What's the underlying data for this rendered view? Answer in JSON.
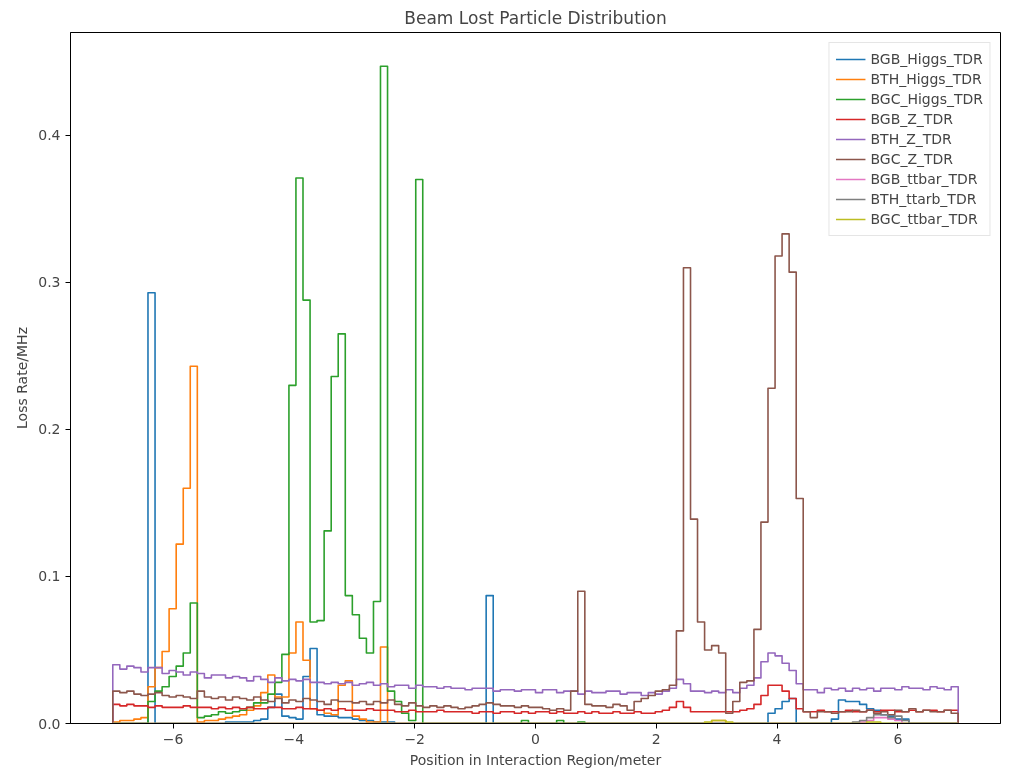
{
  "chart_data": {
    "type": "histogram",
    "title": "Beam Lost Particle Distribution",
    "xlabel": "Position in Interaction Region/meter",
    "ylabel": "Loss Rate/MHz",
    "bins": [
      -7,
      -6.883,
      -6.767,
      -6.65,
      -6.533,
      -6.417,
      -6.3,
      -6.183,
      -6.067,
      -5.95,
      -5.833,
      -5.717,
      -5.6,
      -5.483,
      -5.367,
      -5.25,
      -5.133,
      -5.017,
      -4.9,
      -4.783,
      -4.667,
      -4.55,
      -4.433,
      -4.317,
      -4.2,
      -4.083,
      -3.967,
      -3.85,
      -3.733,
      -3.617,
      -3.5,
      -3.383,
      -3.267,
      -3.15,
      -3.033,
      -2.917,
      -2.8,
      -2.683,
      -2.567,
      -2.45,
      -2.333,
      -2.217,
      -2.1,
      -1.983,
      -1.867,
      -1.75,
      -1.633,
      -1.517,
      -1.4,
      -1.283,
      -1.167,
      -1.05,
      -0.933,
      -0.817,
      -0.7,
      -0.583,
      -0.467,
      -0.35,
      -0.233,
      -0.117,
      0,
      0.117,
      0.233,
      0.35,
      0.467,
      0.583,
      0.7,
      0.817,
      0.933,
      1.05,
      1.167,
      1.283,
      1.4,
      1.517,
      1.633,
      1.75,
      1.867,
      1.983,
      2.1,
      2.217,
      2.333,
      2.45,
      2.567,
      2.683,
      2.8,
      2.917,
      3.033,
      3.15,
      3.267,
      3.383,
      3.5,
      3.617,
      3.733,
      3.85,
      3.967,
      4.083,
      4.2,
      4.317,
      4.433,
      4.55,
      4.667,
      4.783,
      4.9,
      5.017,
      5.133,
      5.25,
      5.367,
      5.483,
      5.6,
      5.717,
      5.833,
      5.95,
      6.067,
      6.183,
      6.3,
      6.417,
      6.533,
      6.65,
      6.767,
      6.883,
      7
    ],
    "series": [
      {
        "name": "BGB_Higgs_TDR",
        "color": "#1f77b4",
        "values": [
          0,
          0,
          0,
          0,
          0,
          0.293,
          0,
          0,
          0,
          0,
          0,
          0,
          0,
          0,
          0,
          0,
          0.001,
          0.001,
          0.001,
          0.001,
          0.002,
          0.003,
          0.011,
          0.02,
          0.005,
          0.004,
          0.003,
          0.032,
          0.051,
          0.006,
          0.005,
          0.005,
          0.004,
          0.004,
          0.003,
          0.002,
          0.002,
          0.001,
          0.001,
          0.001,
          0,
          0,
          0,
          0,
          0,
          0,
          0,
          0,
          0,
          0,
          0,
          0,
          0,
          0.087,
          0,
          0,
          0,
          0,
          0,
          0,
          0,
          0,
          0,
          0,
          0,
          0,
          0,
          0,
          0,
          0,
          0,
          0,
          0,
          0,
          0,
          0,
          0,
          0,
          0,
          0,
          0,
          0,
          0,
          0,
          0,
          0,
          0,
          0,
          0,
          0,
          0,
          0,
          0,
          0.007,
          0.01,
          0.015,
          0.017,
          0,
          0,
          0,
          0,
          0,
          0.003,
          0.016,
          0.015,
          0.015,
          0.013,
          0.01,
          0.009,
          0.006,
          0.005,
          0.003,
          0.003,
          0,
          0,
          0,
          0,
          0,
          0,
          0
        ]
      },
      {
        "name": "BTH_Higgs_TDR",
        "color": "#ff7f0e",
        "values": [
          0.001,
          0.002,
          0.002,
          0.003,
          0.004,
          0.025,
          0.038,
          0.049,
          0.078,
          0.122,
          0.16,
          0.243,
          0.001,
          0.002,
          0.002,
          0.003,
          0.004,
          0.005,
          0.006,
          0.009,
          0.012,
          0.021,
          0.033,
          0.018,
          0.018,
          0.048,
          0.069,
          0.043,
          0.01,
          0.009,
          0.007,
          0.006,
          0.026,
          0.029,
          0.005,
          0.003,
          0.001,
          0.001,
          0.052,
          0,
          0,
          0,
          0,
          0,
          0,
          0,
          0,
          0,
          0,
          0,
          0,
          0,
          0,
          0,
          0,
          0,
          0,
          0,
          0,
          0,
          0,
          0,
          0,
          0,
          0,
          0,
          0,
          0,
          0,
          0,
          0,
          0,
          0,
          0,
          0,
          0,
          0,
          0,
          0,
          0,
          0,
          0,
          0,
          0,
          0,
          0.002,
          0.002,
          0,
          0,
          0,
          0,
          0,
          0,
          0,
          0,
          0,
          0,
          0,
          0,
          0,
          0,
          0,
          0,
          0,
          0,
          0,
          0,
          0,
          0,
          0,
          0,
          0,
          0,
          0,
          0,
          0,
          0,
          0,
          0,
          0
        ]
      },
      {
        "name": "BGC_Higgs_TDR",
        "color": "#2ca02c",
        "values": [
          0,
          0,
          0,
          0,
          0,
          0.015,
          0.022,
          0.025,
          0.032,
          0.039,
          0.048,
          0.082,
          0.004,
          0.005,
          0.006,
          0.008,
          0.007,
          0.008,
          0.009,
          0.011,
          0.014,
          0.014,
          0.02,
          0.028,
          0.047,
          0.23,
          0.371,
          0.288,
          0.069,
          0.07,
          0.131,
          0.236,
          0.265,
          0.087,
          0.074,
          0.058,
          0.048,
          0.083,
          0.447,
          0.022,
          0.015,
          0.007,
          0.002,
          0.37,
          0,
          0,
          0,
          0,
          0,
          0,
          0,
          0,
          0,
          0,
          0,
          0,
          0,
          0,
          0.002,
          0,
          0,
          0,
          0,
          0.002,
          0,
          0,
          0.001,
          0,
          0,
          0,
          0,
          0,
          0,
          0,
          0,
          0,
          0,
          0,
          0,
          0,
          0,
          0,
          0,
          0,
          0,
          0,
          0,
          0,
          0,
          0,
          0,
          0,
          0,
          0,
          0,
          0,
          0,
          0,
          0,
          0,
          0,
          0,
          0,
          0,
          0,
          0,
          0,
          0,
          0,
          0,
          0,
          0,
          0,
          0,
          0,
          0,
          0,
          0,
          0,
          0
        ]
      },
      {
        "name": "BGB_Z_TDR",
        "color": "#d62728",
        "values": [
          0.013,
          0.012,
          0.013,
          0.012,
          0.012,
          0.011,
          0.012,
          0.011,
          0.011,
          0.011,
          0.012,
          0.011,
          0.011,
          0.011,
          0.01,
          0.011,
          0.01,
          0.011,
          0.01,
          0.011,
          0.01,
          0.01,
          0.011,
          0.011,
          0.01,
          0.01,
          0.011,
          0.01,
          0.01,
          0.009,
          0.01,
          0.009,
          0.01,
          0.009,
          0.009,
          0.009,
          0.01,
          0.009,
          0.009,
          0.009,
          0.008,
          0.008,
          0.009,
          0.008,
          0.008,
          0.008,
          0.009,
          0.008,
          0.008,
          0.008,
          0.008,
          0.007,
          0.008,
          0.008,
          0.007,
          0.008,
          0.008,
          0.007,
          0.008,
          0.007,
          0.008,
          0.008,
          0.007,
          0.008,
          0.007,
          0.007,
          0.008,
          0.007,
          0.008,
          0.007,
          0.007,
          0.008,
          0.007,
          0.007,
          0.008,
          0.007,
          0.007,
          0.008,
          0.009,
          0.011,
          0.015,
          0.011,
          0.008,
          0.008,
          0.008,
          0.008,
          0.008,
          0.008,
          0.008,
          0.009,
          0.01,
          0.013,
          0.019,
          0.026,
          0.026,
          0.022,
          0.017,
          0.01,
          0.008,
          0.008,
          0.009,
          0.008,
          0.008,
          0.008,
          0.009,
          0.008,
          0.008,
          0.009,
          0.008,
          0.009,
          0.009,
          0.008,
          0.008,
          0.009,
          0.008,
          0.009,
          0.009,
          0.008,
          0.009,
          0.009
        ]
      },
      {
        "name": "BTH_Z_TDR",
        "color": "#9467bd",
        "values": [
          0.04,
          0.037,
          0.039,
          0.038,
          0.035,
          0.038,
          0.038,
          0.034,
          0.036,
          0.035,
          0.033,
          0.035,
          0.034,
          0.031,
          0.033,
          0.033,
          0.031,
          0.032,
          0.031,
          0.029,
          0.032,
          0.03,
          0.028,
          0.031,
          0.029,
          0.03,
          0.029,
          0.03,
          0.028,
          0.028,
          0.027,
          0.028,
          0.027,
          0.028,
          0.026,
          0.027,
          0.028,
          0.026,
          0.027,
          0.025,
          0.026,
          0.026,
          0.024,
          0.026,
          0.025,
          0.025,
          0.024,
          0.025,
          0.024,
          0.024,
          0.023,
          0.024,
          0.024,
          0.024,
          0.022,
          0.023,
          0.023,
          0.022,
          0.023,
          0.023,
          0.021,
          0.023,
          0.023,
          0.021,
          0.022,
          0.022,
          0.02,
          0.022,
          0.021,
          0.021,
          0.022,
          0.022,
          0.02,
          0.021,
          0.021,
          0.019,
          0.021,
          0.02,
          0.022,
          0.024,
          0.03,
          0.027,
          0.022,
          0.022,
          0.021,
          0.022,
          0.021,
          0.023,
          0.021,
          0.024,
          0.026,
          0.031,
          0.042,
          0.048,
          0.046,
          0.041,
          0.036,
          0.027,
          0.023,
          0.023,
          0.021,
          0.024,
          0.023,
          0.024,
          0.022,
          0.024,
          0.023,
          0.024,
          0.022,
          0.024,
          0.024,
          0.023,
          0.025,
          0.024,
          0.024,
          0.023,
          0.025,
          0.024,
          0.023,
          0.025
        ]
      },
      {
        "name": "BGC_Z_TDR",
        "color": "#8c564b",
        "values": [
          0.022,
          0.021,
          0.022,
          0.02,
          0.019,
          0.02,
          0.021,
          0.019,
          0.018,
          0.019,
          0.018,
          0.017,
          0.022,
          0.018,
          0.017,
          0.018,
          0.016,
          0.018,
          0.017,
          0.016,
          0.018,
          0.016,
          0.015,
          0.017,
          0.014,
          0.016,
          0.015,
          0.017,
          0.016,
          0.015,
          0.013,
          0.016,
          0.015,
          0.015,
          0.014,
          0.015,
          0.013,
          0.015,
          0.014,
          0.016,
          0.013,
          0.012,
          0.014,
          0.012,
          0.011,
          0.012,
          0.011,
          0.012,
          0.011,
          0.01,
          0.011,
          0.012,
          0.013,
          0.014,
          0.013,
          0.012,
          0.012,
          0.011,
          0.012,
          0.011,
          0.011,
          0.01,
          0.009,
          0.01,
          0.009,
          0.022,
          0.09,
          0.013,
          0.012,
          0.012,
          0.011,
          0.013,
          0.012,
          0.009,
          0.015,
          0.017,
          0.019,
          0.022,
          0.023,
          0.026,
          0.063,
          0.31,
          0.139,
          0.069,
          0.05,
          0.053,
          0.048,
          0.007,
          0.015,
          0.028,
          0.029,
          0.064,
          0.137,
          0.228,
          0.318,
          0.333,
          0.307,
          0.153,
          0.008,
          0.004,
          0.008,
          0.008,
          0.007,
          0.008,
          0.008,
          0.009,
          0.008,
          0.009,
          0.007,
          0.008,
          0.006,
          0.009,
          0.008,
          0.01,
          0.008,
          0.009,
          0.008,
          0.008,
          0.009,
          0.007
        ]
      },
      {
        "name": "BGB_ttbar_TDR",
        "color": "#e377c2",
        "values": [
          0,
          0,
          0,
          0,
          0,
          0,
          0,
          0,
          0,
          0,
          0,
          0,
          0,
          0,
          0,
          0,
          0,
          0,
          0,
          0,
          0,
          0,
          0,
          0,
          0,
          0,
          0,
          0,
          0,
          0,
          0,
          0,
          0,
          0,
          0,
          0,
          0,
          0,
          0,
          0,
          0,
          0,
          0,
          0,
          0,
          0,
          0,
          0,
          0,
          0,
          0,
          0,
          0,
          0,
          0,
          0,
          0,
          0,
          0,
          0,
          0,
          0,
          0,
          0,
          0,
          0,
          0,
          0,
          0,
          0,
          0,
          0,
          0,
          0,
          0,
          0,
          0,
          0,
          0,
          0,
          0,
          0,
          0,
          0,
          0,
          0,
          0,
          0,
          0,
          0,
          0,
          0,
          0,
          0,
          0,
          0,
          0,
          0,
          0,
          0,
          0,
          0,
          0,
          0,
          0,
          0,
          0.001,
          0.002,
          0.004,
          0.004,
          0.003,
          0.002,
          0,
          0,
          0,
          0,
          0,
          0,
          0,
          0
        ]
      },
      {
        "name": "BTH_ttarb_TDR",
        "color": "#7f7f7f",
        "values": [
          0,
          0,
          0,
          0,
          0,
          0,
          0,
          0,
          0,
          0,
          0,
          0,
          0,
          0,
          0,
          0,
          0,
          0,
          0,
          0,
          0,
          0,
          0,
          0,
          0,
          0,
          0,
          0,
          0,
          0,
          0,
          0,
          0,
          0,
          0,
          0,
          0,
          0,
          0,
          0,
          0,
          0,
          0,
          0,
          0,
          0,
          0,
          0,
          0,
          0,
          0,
          0,
          0,
          0,
          0,
          0,
          0,
          0,
          0,
          0,
          0,
          0,
          0,
          0,
          0,
          0,
          0,
          0,
          0,
          0,
          0,
          0,
          0,
          0,
          0,
          0,
          0,
          0,
          0,
          0,
          0,
          0,
          0,
          0,
          0,
          0,
          0,
          0,
          0,
          0,
          0,
          0,
          0,
          0,
          0,
          0,
          0,
          0,
          0,
          0,
          0,
          0,
          0,
          0,
          0,
          0.001,
          0.002,
          0.004,
          0.006,
          0.006,
          0.004,
          0.005,
          0.002,
          0,
          0,
          0,
          0,
          0,
          0,
          0
        ]
      },
      {
        "name": "BGC_ttbar_TDR",
        "color": "#bcbd22",
        "values": [
          0,
          0,
          0,
          0,
          0,
          0,
          0,
          0,
          0,
          0,
          0,
          0,
          0,
          0,
          0,
          0,
          0,
          0,
          0,
          0,
          0,
          0,
          0,
          0,
          0,
          0,
          0,
          0,
          0,
          0,
          0,
          0,
          0,
          0,
          0,
          0,
          0,
          0,
          0,
          0,
          0,
          0,
          0,
          0,
          0,
          0,
          0,
          0,
          0,
          0,
          0,
          0,
          0,
          0,
          0,
          0,
          0,
          0,
          0,
          0,
          0,
          0,
          0,
          0,
          0,
          0,
          0,
          0,
          0,
          0,
          0,
          0,
          0,
          0,
          0,
          0,
          0,
          0,
          0,
          0,
          0,
          0,
          0,
          0,
          0.001,
          0.002,
          0.002,
          0.001,
          0,
          0,
          0,
          0,
          0,
          0,
          0,
          0,
          0,
          0,
          0,
          0,
          0,
          0,
          0,
          0,
          0,
          0,
          0,
          0.001,
          0.001,
          0,
          0,
          0,
          0,
          0,
          0,
          0,
          0,
          0,
          0,
          0
        ]
      }
    ],
    "xlim": [
      -7.7,
      7.7
    ],
    "ylim": [
      0,
      0.47
    ],
    "xticks": [
      {
        "value": -6,
        "label": "−6"
      },
      {
        "value": -4,
        "label": "−4"
      },
      {
        "value": -2,
        "label": "−2"
      },
      0,
      2,
      4,
      6
    ],
    "yticks": [
      {
        "value": 0,
        "label": "0.0"
      },
      0.1,
      0.2,
      0.3,
      0.4
    ],
    "legend": "top right"
  }
}
